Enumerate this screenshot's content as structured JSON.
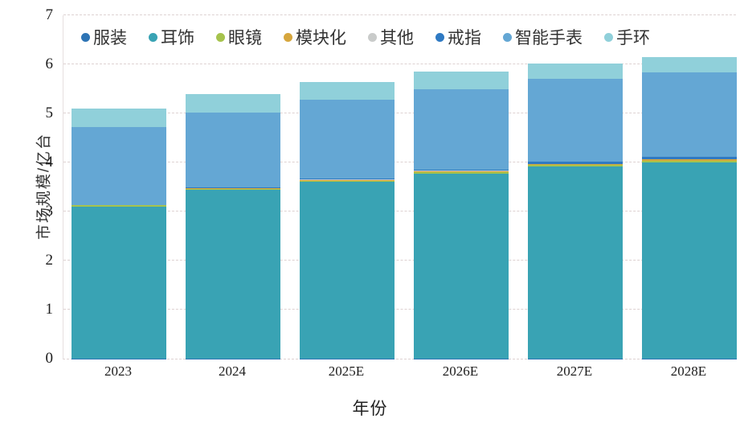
{
  "chart_data": {
    "type": "bar",
    "stacked": true,
    "title": "",
    "xlabel": "年份",
    "ylabel": "市场规模/亿台",
    "ylim": [
      0,
      7
    ],
    "yticks": [
      0,
      1,
      2,
      3,
      4,
      5,
      6,
      7
    ],
    "grid": "horizontal-dashed",
    "legend_position": "top-inside",
    "categories": [
      "2023",
      "2024",
      "2025E",
      "2026E",
      "2027E",
      "2028E"
    ],
    "series": [
      {
        "key": "clothing",
        "name": "服装",
        "color": "#2e74b5",
        "values": [
          0.005,
          0.005,
          0.005,
          0.005,
          0.005,
          0.005
        ]
      },
      {
        "key": "earwear",
        "name": "耳饰",
        "color": "#39a3b4",
        "values": [
          3.1,
          3.44,
          3.6,
          3.77,
          3.91,
          4.0
        ]
      },
      {
        "key": "glasses",
        "name": "眼镜",
        "color": "#a6c34d",
        "values": [
          0.02,
          0.02,
          0.025,
          0.03,
          0.03,
          0.03
        ]
      },
      {
        "key": "modular",
        "name": "模块化",
        "color": "#d6a63d",
        "values": [
          0.005,
          0.01,
          0.015,
          0.02,
          0.025,
          0.03
        ]
      },
      {
        "key": "other",
        "name": "其他",
        "color": "#c9cbca",
        "values": [
          0.005,
          0.005,
          0.005,
          0.005,
          0.005,
          0.005
        ]
      },
      {
        "key": "ring",
        "name": "戒指",
        "color": "#2f7ac3",
        "values": [
          0.005,
          0.01,
          0.025,
          0.03,
          0.035,
          0.04
        ]
      },
      {
        "key": "smartwatch",
        "name": "智能手表",
        "color": "#64a7d4",
        "values": [
          1.59,
          1.52,
          1.61,
          1.64,
          1.69,
          1.72
        ]
      },
      {
        "key": "band",
        "name": "手环",
        "color": "#90d0da",
        "values": [
          0.37,
          0.39,
          0.36,
          0.36,
          0.31,
          0.32
        ]
      }
    ],
    "totals": [
      5.1,
      5.4,
      5.65,
      5.86,
      6.01,
      6.15
    ]
  }
}
